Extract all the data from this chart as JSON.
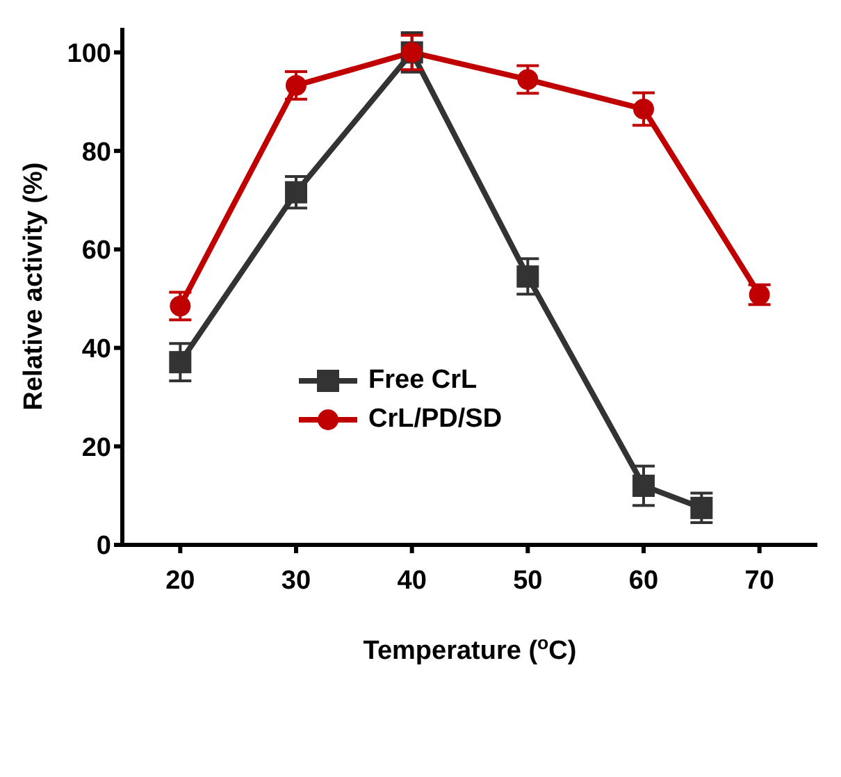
{
  "chart_data": {
    "type": "line",
    "xlabel": "Temperature ($^{o}$C)",
    "ylabel": "Relative activity (%)",
    "xlim": [
      15,
      75
    ],
    "xticks": [
      20,
      30,
      40,
      50,
      60,
      70
    ],
    "ylim": [
      0,
      105
    ],
    "yticks": [
      0,
      20,
      40,
      60,
      80,
      100
    ],
    "grid": false,
    "legend": "center left",
    "line_style": "solid",
    "series": [
      {
        "name": "Free CrL",
        "color": "#333333",
        "marker": "square",
        "x": [
          20,
          30,
          40,
          50,
          60,
          65
        ],
        "values": [
          37.1,
          71.6,
          100,
          54.5,
          12,
          7.5
        ],
        "errors": [
          3.8,
          3.2,
          4,
          3.6,
          4,
          3
        ]
      },
      {
        "name": "CrL/PD/SD",
        "color": "#c00000",
        "marker": "circle",
        "x": [
          20,
          30,
          40,
          50,
          60,
          70
        ],
        "values": [
          48.5,
          93.3,
          100,
          94.5,
          88.5,
          50.8
        ],
        "errors": [
          2.8,
          2.8,
          3.5,
          2.8,
          3.3,
          2
        ]
      }
    ]
  }
}
